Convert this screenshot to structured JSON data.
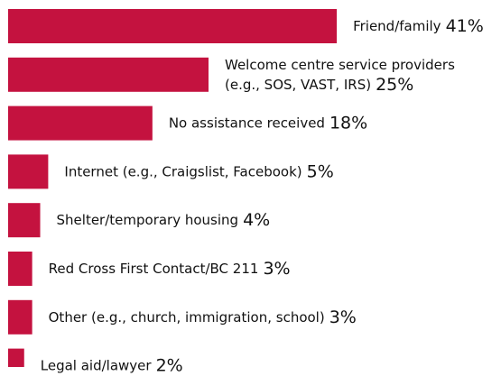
{
  "chart_data": {
    "type": "bar",
    "orientation": "horizontal",
    "color": "#c4123f",
    "categories": [
      "Friend/family",
      "Welcome centre service providers\n(e.g., SOS, VAST, IRS)",
      "No assistance received",
      "Internet (e.g., Craigslist, Facebook)",
      "Shelter/temporary housing",
      "Red Cross First Contact/BC 211",
      "Other (e.g., church, immigration, school)",
      "Legal aid/lawyer"
    ],
    "values": [
      41,
      25,
      18,
      5,
      4,
      3,
      3,
      2
    ],
    "value_labels": [
      "41%",
      "25%",
      "18%",
      "5%",
      "4%",
      "3%",
      "3%",
      "2%"
    ]
  }
}
